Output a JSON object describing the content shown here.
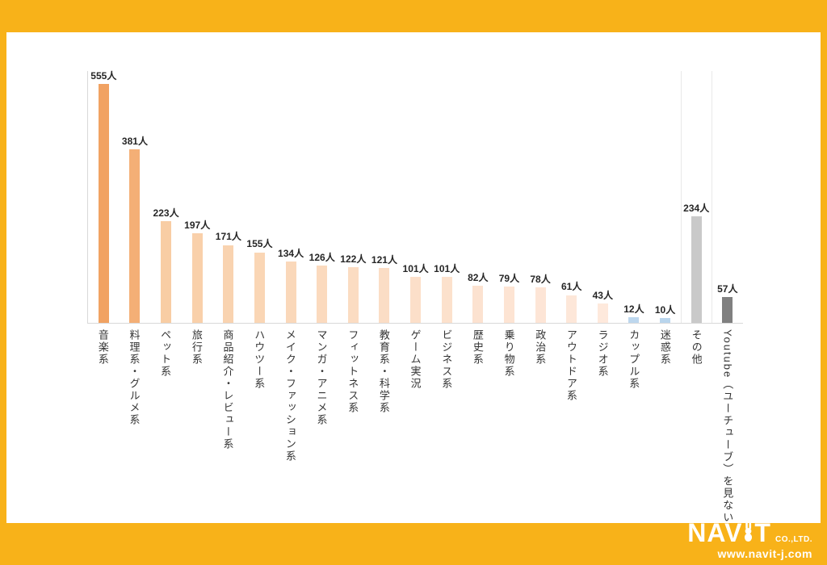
{
  "page": {
    "background_color": "#F8B219",
    "panel_color": "#FFFFFF",
    "axis_color": "#D9D9D9"
  },
  "chart_data": {
    "type": "bar",
    "title": "",
    "unit": "人",
    "categories": [
      "音楽系",
      "料理系・グルメ系",
      "ペット系",
      "旅行系",
      "商品紹介・レビュー系",
      "ハウツー系",
      "メイク・ファッション系",
      "マンガ・アニメ系",
      "フィットネス系",
      "教育系・科学系",
      "ゲーム実況",
      "ビジネス系",
      "歴史系",
      "乗り物系",
      "政治系",
      "アウトドア系",
      "ラジオ系",
      "カップル系",
      "迷惑系",
      "その他",
      "Youtube（ユーチューブ）を見ない"
    ],
    "values": [
      555,
      381,
      223,
      197,
      171,
      155,
      134,
      126,
      122,
      121,
      101,
      101,
      82,
      79,
      78,
      61,
      43,
      12,
      10,
      234,
      57
    ],
    "value_labels": [
      "555人",
      "381人",
      "223人",
      "197人",
      "171人",
      "155人",
      "134人",
      "126人",
      "122人",
      "121人",
      "101人",
      "101人",
      "82人",
      "79人",
      "78人",
      "61人",
      "43人",
      "12人",
      "10人",
      "234人",
      "57人"
    ],
    "bar_colors": [
      "#F1A262",
      "#F4AF76",
      "#F8CDA4",
      "#F9D0AA",
      "#F9D3B0",
      "#FAD6B5",
      "#FAD8BA",
      "#FBDABE",
      "#FBDCC2",
      "#FBDDC5",
      "#FCDFC9",
      "#FCE1CC",
      "#FCE2D0",
      "#FDE4D3",
      "#FDE5D6",
      "#FDE7D9",
      "#FEE9DC",
      "#BDD7EE",
      "#B9D5ED",
      "#C9C9C9",
      "#808080"
    ],
    "xlabel": "",
    "ylabel": "",
    "ylim": [
      0,
      555
    ],
    "grid": false,
    "legend": "none"
  },
  "footer": {
    "logo_left": "NAV",
    "logo_right": "T",
    "corp": "CO.,LTD.",
    "url": "www.navit-j.com"
  }
}
